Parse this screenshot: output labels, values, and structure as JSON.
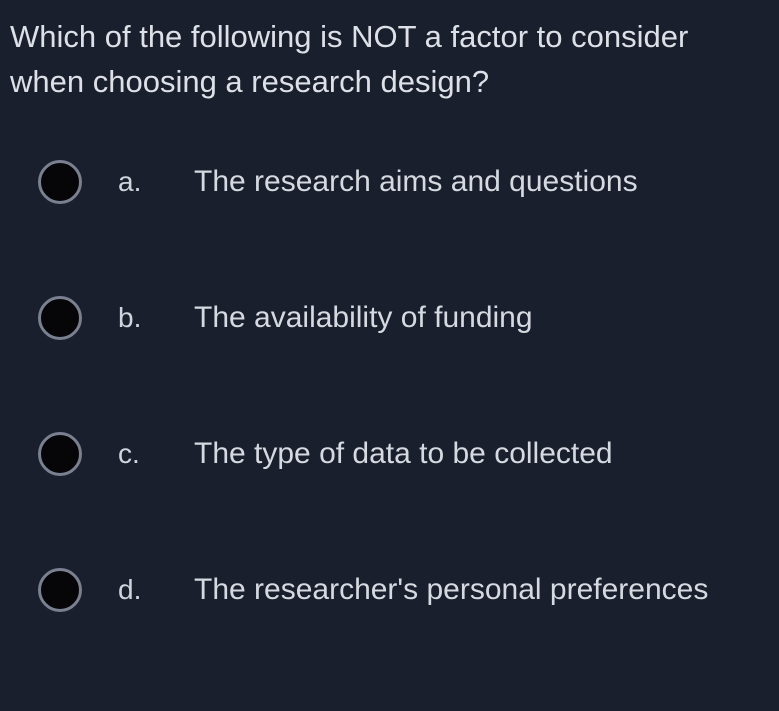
{
  "question": {
    "text": "Which of the following is NOT a factor to consider when choosing a research design?"
  },
  "options": [
    {
      "letter": "a.",
      "text": "The research aims and questions"
    },
    {
      "letter": "b.",
      "text": "The availability of funding"
    },
    {
      "letter": "c.",
      "text": "The type of data to be collected"
    },
    {
      "letter": "d.",
      "text": "The researcher's personal preferences"
    }
  ],
  "colors": {
    "background": "#1a1f2e",
    "text": "#d8dce2",
    "radio_border": "#7a8090",
    "radio_fill": "#060608"
  },
  "typography": {
    "question_fontsize": 31,
    "option_fontsize": 30,
    "letter_fontsize": 28
  }
}
